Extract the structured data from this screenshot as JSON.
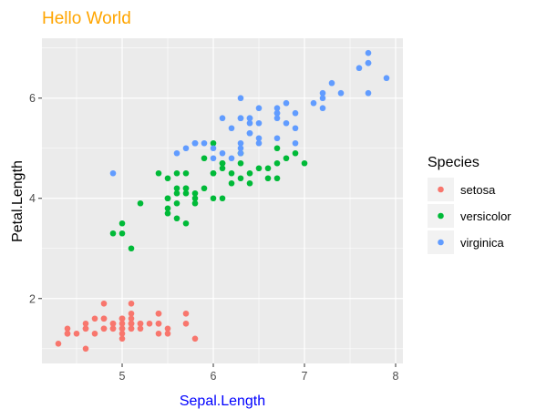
{
  "chart_data": {
    "type": "scatter",
    "title": "Hello World",
    "title_color": "#FFA500",
    "xlabel": "Sepal.Length",
    "xlabel_color": "#0000FF",
    "ylabel": "Petal.Length",
    "xlim": [
      4.12,
      8.08
    ],
    "ylim": [
      0.705,
      7.195
    ],
    "x_ticks": [
      5,
      6,
      7,
      8
    ],
    "x_tick_labels": [
      "5",
      "6",
      "7",
      "8"
    ],
    "y_ticks": [
      2,
      4,
      6
    ],
    "y_tick_labels": [
      "2",
      "4",
      "6"
    ],
    "grid": true,
    "panel_background": "#EBEBEB",
    "legend": {
      "title": "Species",
      "position": "right"
    },
    "series": [
      {
        "name": "setosa",
        "color": "#F8766D",
        "points": [
          [
            5.1,
            1.4
          ],
          [
            4.9,
            1.4
          ],
          [
            4.7,
            1.3
          ],
          [
            4.6,
            1.5
          ],
          [
            5.0,
            1.4
          ],
          [
            5.4,
            1.7
          ],
          [
            4.6,
            1.4
          ],
          [
            5.0,
            1.5
          ],
          [
            4.4,
            1.4
          ],
          [
            4.9,
            1.5
          ],
          [
            5.4,
            1.5
          ],
          [
            4.8,
            1.6
          ],
          [
            4.8,
            1.4
          ],
          [
            4.3,
            1.1
          ],
          [
            5.8,
            1.2
          ],
          [
            5.7,
            1.5
          ],
          [
            5.4,
            1.3
          ],
          [
            5.1,
            1.4
          ],
          [
            5.7,
            1.7
          ],
          [
            5.1,
            1.5
          ],
          [
            5.4,
            1.7
          ],
          [
            5.1,
            1.5
          ],
          [
            4.6,
            1.0
          ],
          [
            5.1,
            1.7
          ],
          [
            4.8,
            1.9
          ],
          [
            5.0,
            1.6
          ],
          [
            5.0,
            1.6
          ],
          [
            5.2,
            1.5
          ],
          [
            5.2,
            1.4
          ],
          [
            4.7,
            1.6
          ],
          [
            4.8,
            1.6
          ],
          [
            5.4,
            1.5
          ],
          [
            5.2,
            1.5
          ],
          [
            5.5,
            1.4
          ],
          [
            4.9,
            1.5
          ],
          [
            5.0,
            1.2
          ],
          [
            5.5,
            1.3
          ],
          [
            4.9,
            1.4
          ],
          [
            4.4,
            1.3
          ],
          [
            5.1,
            1.5
          ],
          [
            5.0,
            1.3
          ],
          [
            4.5,
            1.3
          ],
          [
            4.4,
            1.3
          ],
          [
            5.0,
            1.6
          ],
          [
            5.1,
            1.9
          ],
          [
            4.8,
            1.4
          ],
          [
            5.1,
            1.6
          ],
          [
            4.6,
            1.4
          ],
          [
            5.3,
            1.5
          ],
          [
            5.0,
            1.4
          ]
        ]
      },
      {
        "name": "versicolor",
        "color": "#00BA38",
        "points": [
          [
            7.0,
            4.7
          ],
          [
            6.4,
            4.5
          ],
          [
            6.9,
            4.9
          ],
          [
            5.5,
            4.0
          ],
          [
            6.5,
            4.6
          ],
          [
            5.7,
            4.5
          ],
          [
            6.3,
            4.7
          ],
          [
            4.9,
            3.3
          ],
          [
            6.6,
            4.6
          ],
          [
            5.2,
            3.9
          ],
          [
            5.0,
            3.5
          ],
          [
            5.9,
            4.2
          ],
          [
            6.0,
            4.0
          ],
          [
            6.1,
            4.7
          ],
          [
            5.6,
            3.6
          ],
          [
            6.7,
            4.4
          ],
          [
            5.6,
            4.5
          ],
          [
            5.8,
            4.1
          ],
          [
            6.2,
            4.5
          ],
          [
            5.6,
            3.9
          ],
          [
            5.9,
            4.8
          ],
          [
            6.1,
            4.0
          ],
          [
            6.3,
            4.9
          ],
          [
            6.1,
            4.7
          ],
          [
            6.4,
            4.3
          ],
          [
            6.6,
            4.4
          ],
          [
            6.8,
            4.8
          ],
          [
            6.7,
            5.0
          ],
          [
            6.0,
            4.5
          ],
          [
            5.7,
            3.5
          ],
          [
            5.5,
            3.8
          ],
          [
            5.5,
            3.7
          ],
          [
            5.8,
            3.9
          ],
          [
            6.0,
            5.1
          ],
          [
            5.4,
            4.5
          ],
          [
            6.0,
            4.5
          ],
          [
            6.7,
            4.7
          ],
          [
            6.3,
            4.4
          ],
          [
            5.6,
            4.1
          ],
          [
            5.5,
            4.0
          ],
          [
            5.5,
            4.4
          ],
          [
            6.1,
            4.6
          ],
          [
            5.8,
            4.0
          ],
          [
            5.0,
            3.3
          ],
          [
            5.6,
            4.2
          ],
          [
            5.7,
            4.2
          ],
          [
            5.7,
            4.2
          ],
          [
            6.2,
            4.3
          ],
          [
            5.1,
            3.0
          ],
          [
            5.7,
            4.1
          ]
        ]
      },
      {
        "name": "virginica",
        "color": "#619CFF",
        "points": [
          [
            6.3,
            6.0
          ],
          [
            5.8,
            5.1
          ],
          [
            7.1,
            5.9
          ],
          [
            6.3,
            5.6
          ],
          [
            6.5,
            5.8
          ],
          [
            7.6,
            6.6
          ],
          [
            4.9,
            4.5
          ],
          [
            7.3,
            6.3
          ],
          [
            6.7,
            5.8
          ],
          [
            7.2,
            6.1
          ],
          [
            6.5,
            5.1
          ],
          [
            6.4,
            5.3
          ],
          [
            6.8,
            5.5
          ],
          [
            5.7,
            5.0
          ],
          [
            5.8,
            5.1
          ],
          [
            6.4,
            5.3
          ],
          [
            6.5,
            5.5
          ],
          [
            7.7,
            6.7
          ],
          [
            7.7,
            6.9
          ],
          [
            6.0,
            5.0
          ],
          [
            6.9,
            5.7
          ],
          [
            5.6,
            4.9
          ],
          [
            7.7,
            6.7
          ],
          [
            6.3,
            4.9
          ],
          [
            6.7,
            5.7
          ],
          [
            7.2,
            6.0
          ],
          [
            6.2,
            4.8
          ],
          [
            6.1,
            4.9
          ],
          [
            6.4,
            5.6
          ],
          [
            7.2,
            5.8
          ],
          [
            7.4,
            6.1
          ],
          [
            7.9,
            6.4
          ],
          [
            6.4,
            5.6
          ],
          [
            6.3,
            5.1
          ],
          [
            6.1,
            5.6
          ],
          [
            7.7,
            6.1
          ],
          [
            6.3,
            5.6
          ],
          [
            6.4,
            5.5
          ],
          [
            6.0,
            4.8
          ],
          [
            6.9,
            5.4
          ],
          [
            6.7,
            5.6
          ],
          [
            6.9,
            5.1
          ],
          [
            5.8,
            5.1
          ],
          [
            6.8,
            5.9
          ],
          [
            6.7,
            5.7
          ],
          [
            6.7,
            5.2
          ],
          [
            6.3,
            5.0
          ],
          [
            6.5,
            5.2
          ],
          [
            6.2,
            5.4
          ],
          [
            5.9,
            5.1
          ]
        ]
      }
    ]
  }
}
